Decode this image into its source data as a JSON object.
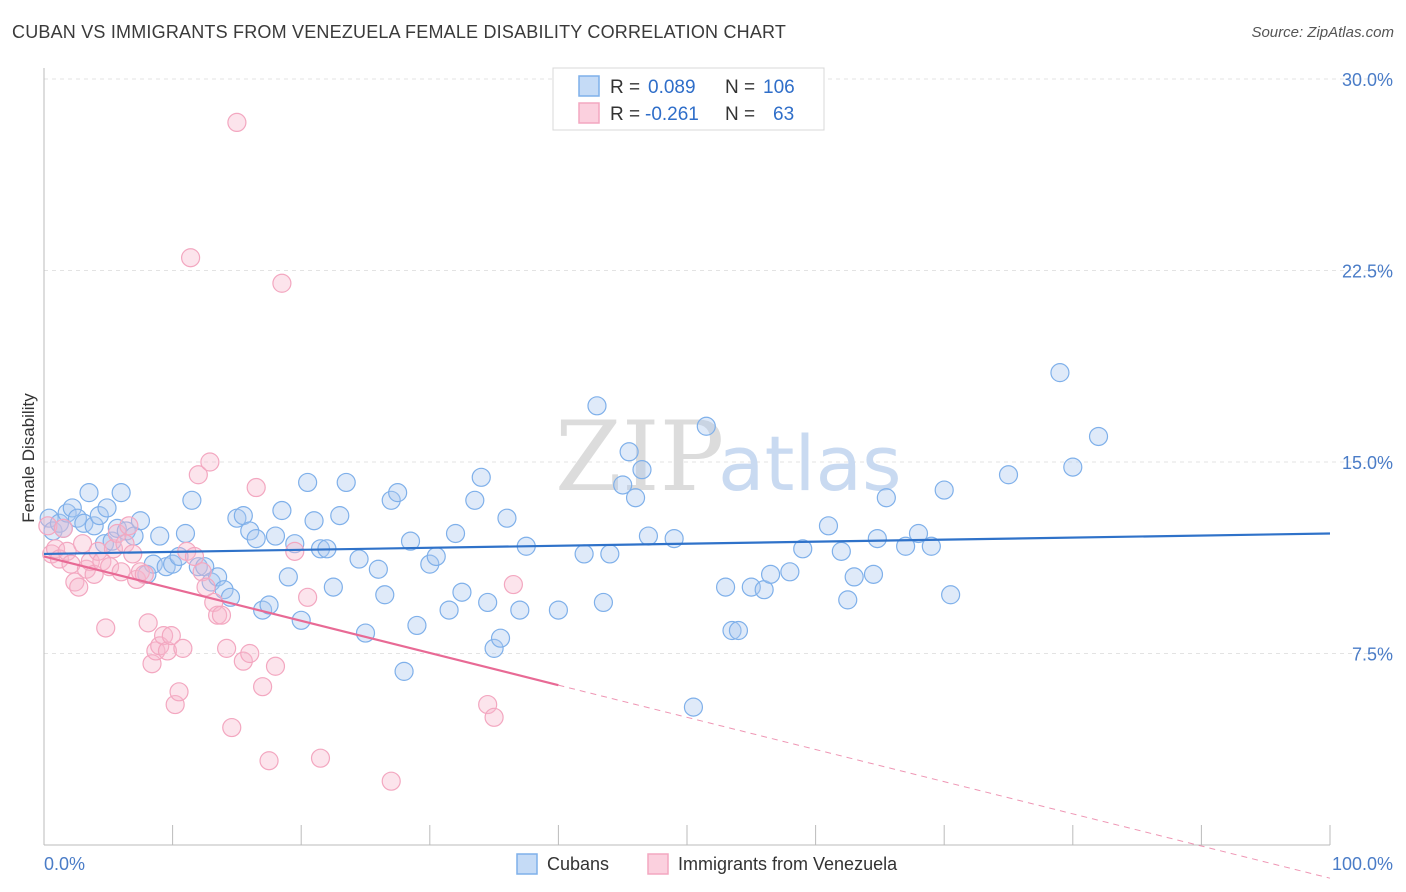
{
  "header": {
    "title": "CUBAN VS IMMIGRANTS FROM VENEZUELA FEMALE DISABILITY CORRELATION CHART",
    "source": "Source: ZipAtlas.com"
  },
  "watermark": {
    "zip": "ZIP",
    "atlas": "atlas"
  },
  "legend": {
    "rows": [
      {
        "r_label": "R =",
        "r_value": "0.089",
        "n_label": "N =",
        "n_value": "106",
        "color": "#7fb0ea"
      },
      {
        "r_label": "R =",
        "r_value": "-0.261",
        "n_label": "N =",
        "n_value": "63",
        "color": "#f3a7c0"
      }
    ]
  },
  "bottom_legend": [
    {
      "label": "Cubans",
      "color": "#7fb0ea"
    },
    {
      "label": "Immigrants from Venezuela",
      "color": "#f3a7c0"
    }
  ],
  "chart_data": {
    "type": "scatter",
    "title": "CUBAN VS IMMIGRANTS FROM VENEZUELA FEMALE DISABILITY CORRELATION CHART",
    "xlabel": "",
    "ylabel": "Female Disability",
    "xlim": [
      0,
      100
    ],
    "ylim": [
      0,
      30
    ],
    "x_tick_labels": [
      "0.0%",
      "100.0%"
    ],
    "y_ticks": [
      7.5,
      15.0,
      22.5,
      30.0
    ],
    "y_tick_labels": [
      "7.5%",
      "15.0%",
      "22.5%",
      "30.0%"
    ],
    "grid": true,
    "legend_position": "top-center",
    "series": [
      {
        "name": "Cubans",
        "color": "#7fb0ea",
        "line_color": "#2f72c9",
        "trend": {
          "x": [
            0,
            100
          ],
          "y": [
            11.4,
            12.2
          ],
          "solid_until": 100
        },
        "points": [
          [
            0.4,
            12.8
          ],
          [
            0.7,
            12.3
          ],
          [
            1.2,
            12.6
          ],
          [
            1.5,
            12.4
          ],
          [
            1.8,
            13.0
          ],
          [
            2.2,
            13.2
          ],
          [
            2.6,
            12.8
          ],
          [
            3.1,
            12.6
          ],
          [
            3.5,
            13.8
          ],
          [
            3.9,
            12.5
          ],
          [
            4.3,
            12.9
          ],
          [
            4.7,
            11.8
          ],
          [
            4.9,
            13.2
          ],
          [
            5.3,
            11.9
          ],
          [
            5.7,
            12.4
          ],
          [
            6.0,
            13.8
          ],
          [
            6.4,
            12.3
          ],
          [
            7.0,
            12.1
          ],
          [
            7.5,
            12.7
          ],
          [
            8.0,
            10.6
          ],
          [
            8.5,
            11.0
          ],
          [
            9.0,
            12.1
          ],
          [
            9.5,
            10.9
          ],
          [
            10.0,
            11.0
          ],
          [
            10.5,
            11.3
          ],
          [
            11.0,
            12.2
          ],
          [
            11.5,
            13.5
          ],
          [
            12.0,
            10.9
          ],
          [
            12.5,
            10.9
          ],
          [
            13.0,
            10.3
          ],
          [
            13.5,
            10.5
          ],
          [
            14.0,
            10.0
          ],
          [
            14.5,
            9.7
          ],
          [
            15.0,
            12.8
          ],
          [
            15.5,
            12.9
          ],
          [
            16.0,
            12.3
          ],
          [
            16.5,
            12.0
          ],
          [
            17.0,
            9.2
          ],
          [
            17.5,
            9.4
          ],
          [
            18.0,
            12.1
          ],
          [
            18.5,
            13.1
          ],
          [
            19.0,
            10.5
          ],
          [
            19.5,
            11.8
          ],
          [
            20.0,
            8.8
          ],
          [
            20.5,
            14.2
          ],
          [
            21.0,
            12.7
          ],
          [
            21.5,
            11.6
          ],
          [
            22.0,
            11.6
          ],
          [
            22.5,
            10.1
          ],
          [
            23.0,
            12.9
          ],
          [
            23.5,
            14.2
          ],
          [
            24.5,
            11.2
          ],
          [
            25.0,
            8.3
          ],
          [
            26.0,
            10.8
          ],
          [
            26.5,
            9.8
          ],
          [
            27.0,
            13.5
          ],
          [
            27.5,
            13.8
          ],
          [
            28.0,
            6.8
          ],
          [
            28.5,
            11.9
          ],
          [
            29.0,
            8.6
          ],
          [
            30.0,
            11.0
          ],
          [
            30.5,
            11.3
          ],
          [
            31.5,
            9.2
          ],
          [
            32.0,
            12.2
          ],
          [
            32.5,
            9.9
          ],
          [
            33.5,
            13.5
          ],
          [
            34.0,
            14.4
          ],
          [
            34.5,
            9.5
          ],
          [
            35.0,
            7.7
          ],
          [
            35.5,
            8.1
          ],
          [
            36.0,
            12.8
          ],
          [
            37.0,
            9.2
          ],
          [
            37.5,
            11.7
          ],
          [
            40.0,
            9.2
          ],
          [
            42.0,
            11.4
          ],
          [
            43.0,
            17.2
          ],
          [
            43.5,
            9.5
          ],
          [
            44.0,
            11.4
          ],
          [
            45.0,
            14.1
          ],
          [
            45.5,
            15.4
          ],
          [
            46.0,
            13.6
          ],
          [
            46.5,
            14.7
          ],
          [
            47.0,
            12.1
          ],
          [
            49.0,
            12.0
          ],
          [
            50.5,
            5.4
          ],
          [
            51.5,
            16.4
          ],
          [
            53.0,
            10.1
          ],
          [
            53.5,
            8.4
          ],
          [
            54.0,
            8.4
          ],
          [
            55.0,
            10.1
          ],
          [
            56.0,
            10.0
          ],
          [
            56.5,
            10.6
          ],
          [
            58.0,
            10.7
          ],
          [
            59.0,
            11.6
          ],
          [
            61.0,
            12.5
          ],
          [
            62.0,
            11.5
          ],
          [
            62.5,
            9.6
          ],
          [
            63.0,
            10.5
          ],
          [
            64.5,
            10.6
          ],
          [
            64.8,
            12.0
          ],
          [
            65.5,
            13.6
          ],
          [
            67.0,
            11.7
          ],
          [
            68.0,
            12.2
          ],
          [
            69.0,
            11.7
          ],
          [
            70.0,
            13.9
          ],
          [
            70.5,
            9.8
          ],
          [
            75.0,
            14.5
          ],
          [
            79.0,
            18.5
          ],
          [
            80.0,
            14.8
          ],
          [
            82.0,
            16.0
          ]
        ]
      },
      {
        "name": "Immigrants from Venezuela",
        "color": "#f3a7c0",
        "line_color": "#e86a95",
        "trend": {
          "x": [
            0,
            100
          ],
          "y": [
            11.3,
            -1.3
          ],
          "solid_until": 40
        },
        "points": [
          [
            0.3,
            12.5
          ],
          [
            0.6,
            11.4
          ],
          [
            0.9,
            11.6
          ],
          [
            1.2,
            11.2
          ],
          [
            1.5,
            12.4
          ],
          [
            1.8,
            11.5
          ],
          [
            2.1,
            11.0
          ],
          [
            2.4,
            10.3
          ],
          [
            2.7,
            10.1
          ],
          [
            3.0,
            11.8
          ],
          [
            3.3,
            10.8
          ],
          [
            3.6,
            11.1
          ],
          [
            3.9,
            10.6
          ],
          [
            4.2,
            11.5
          ],
          [
            4.5,
            11.1
          ],
          [
            4.8,
            8.5
          ],
          [
            5.1,
            10.9
          ],
          [
            5.4,
            11.6
          ],
          [
            5.7,
            12.2
          ],
          [
            6.0,
            10.7
          ],
          [
            6.3,
            11.8
          ],
          [
            6.6,
            12.5
          ],
          [
            6.9,
            11.4
          ],
          [
            7.2,
            10.4
          ],
          [
            7.5,
            10.7
          ],
          [
            7.8,
            10.6
          ],
          [
            8.1,
            8.7
          ],
          [
            8.4,
            7.1
          ],
          [
            8.7,
            7.6
          ],
          [
            9.0,
            7.8
          ],
          [
            9.3,
            8.2
          ],
          [
            9.6,
            7.6
          ],
          [
            9.9,
            8.2
          ],
          [
            10.2,
            5.5
          ],
          [
            10.5,
            6.0
          ],
          [
            10.8,
            7.7
          ],
          [
            11.1,
            11.5
          ],
          [
            11.4,
            23.0
          ],
          [
            11.7,
            11.3
          ],
          [
            12.0,
            14.5
          ],
          [
            12.3,
            10.7
          ],
          [
            12.6,
            10.1
          ],
          [
            12.9,
            15.0
          ],
          [
            13.2,
            9.5
          ],
          [
            13.5,
            9.0
          ],
          [
            13.8,
            9.0
          ],
          [
            14.2,
            7.7
          ],
          [
            14.6,
            4.6
          ],
          [
            15.0,
            28.3
          ],
          [
            15.5,
            7.2
          ],
          [
            16.0,
            7.5
          ],
          [
            16.5,
            14.0
          ],
          [
            17.0,
            6.2
          ],
          [
            17.5,
            3.3
          ],
          [
            18.0,
            7.0
          ],
          [
            18.5,
            22.0
          ],
          [
            19.5,
            11.5
          ],
          [
            20.5,
            9.7
          ],
          [
            21.5,
            3.4
          ],
          [
            27.0,
            2.5
          ],
          [
            34.5,
            5.5
          ],
          [
            35.0,
            5.0
          ],
          [
            36.5,
            10.2
          ]
        ]
      }
    ]
  }
}
